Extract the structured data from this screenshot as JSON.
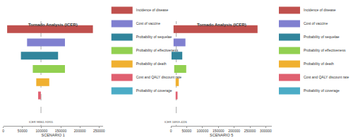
{
  "chart_data": [
    {
      "type": "tornado",
      "title": "Tornado Analysis (ICER)",
      "x_label": "SCENARIO 1",
      "xlim": [
        0,
        260000
      ],
      "xticks": [
        0,
        50000,
        100000,
        150000,
        200000,
        250000
      ],
      "grid": false,
      "tick_labels": "x",
      "orientation": "horizontal",
      "legend": "right",
      "baseline": {
        "value": 98361.91955,
        "label": "ICER 98361.91955"
      },
      "series": [
        {
          "name": "Incidence of disease",
          "color": "#c0504d",
          "values": [
            10000,
            234000
          ]
        },
        {
          "name": "Cost of vaccine",
          "color": "#8080d0",
          "values": [
            62000,
            161000
          ]
        },
        {
          "name": "Probability of sequelae",
          "color": "#31859c",
          "values": [
            46000,
            143000
          ]
        },
        {
          "name": "Probability of effectiveness",
          "color": "#92d050",
          "values": [
            77000,
            161000
          ]
        },
        {
          "name": "Probability of death",
          "color": "#f0b030",
          "values": [
            86000,
            120000
          ]
        },
        {
          "name": "Cost and QALY discount rate",
          "color": "#e06070",
          "values": [
            91000,
            98000
          ]
        },
        {
          "name": "Probability of coverage",
          "color": "#4bacc6",
          "values": [
            98000,
            98000
          ]
        }
      ]
    },
    {
      "type": "tornado",
      "title": "Tornado Analysis (ICER)",
      "x_label": "SCENARIO 5",
      "xlim": [
        0,
        320000
      ],
      "xticks": [
        0,
        50000,
        100000,
        150000,
        200000,
        250000,
        300000
      ],
      "grid": false,
      "tick_labels": "x",
      "orientation": "horizontal",
      "legend": "right",
      "baseline": {
        "value": 16959.4226,
        "label": "ICER 16959.4226"
      },
      "series": [
        {
          "name": "Incidence of disease",
          "color": "#c0504d",
          "values": [
            8400,
            274000
          ]
        },
        {
          "name": "Cost of vaccine",
          "color": "#8080d0",
          "values": [
            8400,
            46000
          ]
        },
        {
          "name": "Probability of sequelae",
          "color": "#31859c",
          "values": [
            2000,
            36000
          ]
        },
        {
          "name": "Probability of effectiveness",
          "color": "#92d050",
          "values": [
            10500,
            48500
          ]
        },
        {
          "name": "Probability of death",
          "color": "#f0b030",
          "values": [
            15000,
            25000
          ]
        },
        {
          "name": "Cost and QALY discount rate",
          "color": "#e06070",
          "values": [
            15000,
            21000
          ]
        },
        {
          "name": "Probability of coverage",
          "color": "#4bacc6",
          "values": [
            17000,
            17000
          ]
        }
      ]
    }
  ]
}
